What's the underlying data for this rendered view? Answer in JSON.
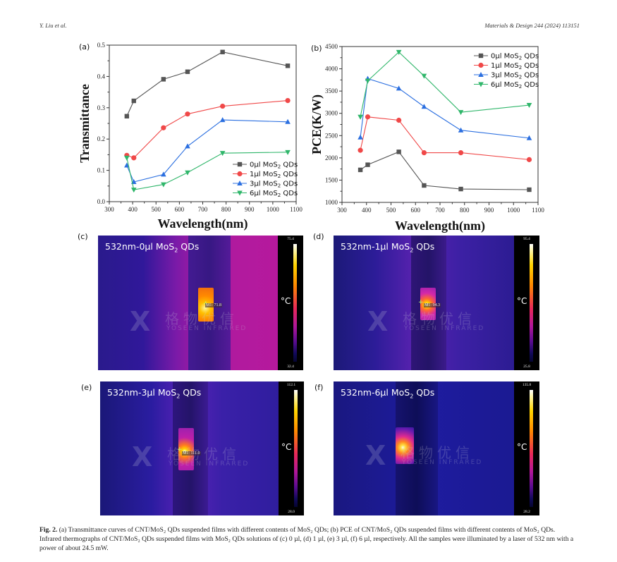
{
  "header": {
    "authors": "Y. Liu et al.",
    "journal": "Materials & Design 244 (2024) 113151"
  },
  "chart_data": [
    {
      "panel": "(a)",
      "type": "line",
      "title": "",
      "xlabel": "Wavelength(nm)",
      "ylabel": "Transmittance",
      "xlim": [
        300,
        1100
      ],
      "ylim": [
        0.0,
        0.5
      ],
      "xticks": [
        300,
        400,
        500,
        600,
        700,
        800,
        900,
        1000,
        1100
      ],
      "yticks": [
        "0.0",
        "0.1",
        "0.2",
        "0.3",
        "0.4",
        "0.5"
      ],
      "yticks_values": [
        0.0,
        0.1,
        0.2,
        0.3,
        0.4,
        0.5
      ],
      "legend_position": "bottom-right",
      "x": [
        375,
        405,
        532,
        635,
        785,
        1064
      ],
      "series": [
        {
          "name": "0µl MoS2 QDs",
          "color": "#555555",
          "marker": "square",
          "values": [
            0.273,
            0.322,
            0.391,
            0.415,
            0.478,
            0.434
          ]
        },
        {
          "name": "1µl MoS2 QDs",
          "color": "#f04848",
          "marker": "circle",
          "values": [
            0.148,
            0.14,
            0.236,
            0.28,
            0.305,
            0.323
          ]
        },
        {
          "name": "3µl MoS2 QDs",
          "color": "#2b6fe0",
          "marker": "triangle-up",
          "values": [
            0.116,
            0.063,
            0.087,
            0.177,
            0.261,
            0.255
          ]
        },
        {
          "name": "6µl MoS2 QDs",
          "color": "#2fb66a",
          "marker": "triangle-down",
          "values": [
            0.14,
            0.038,
            0.055,
            0.093,
            0.155,
            0.158
          ]
        }
      ]
    },
    {
      "panel": "(b)",
      "type": "line",
      "title": "",
      "xlabel": "Wavelength(nm)",
      "ylabel": "PCE(K/W)",
      "xlim": [
        300,
        1100
      ],
      "ylim": [
        1000,
        4500
      ],
      "xticks": [
        300,
        400,
        500,
        600,
        700,
        800,
        900,
        1000,
        1100
      ],
      "yticks": [
        "1000",
        "1500",
        "2000",
        "2500",
        "3000",
        "3500",
        "4000",
        "4500"
      ],
      "yticks_values": [
        1000,
        1500,
        2000,
        2500,
        3000,
        3500,
        4000,
        4500
      ],
      "legend_position": "top-right",
      "x": [
        375,
        405,
        532,
        635,
        785,
        1064
      ],
      "series": [
        {
          "name": "0µl MoS2 QDs",
          "color": "#555555",
          "marker": "square",
          "values": [
            1730,
            1845,
            2135,
            1380,
            1300,
            1285
          ]
        },
        {
          "name": "1µl MoS2 QDs",
          "color": "#f04848",
          "marker": "circle",
          "values": [
            2170,
            2920,
            2845,
            2115,
            2115,
            1960
          ]
        },
        {
          "name": "3µl MoS2 QDs",
          "color": "#2b6fe0",
          "marker": "triangle-up",
          "values": [
            2460,
            3780,
            3560,
            3150,
            2620,
            2445
          ]
        },
        {
          "name": "6µl MoS2 QDs",
          "color": "#2fb66a",
          "marker": "triangle-down",
          "values": [
            2920,
            3730,
            4375,
            3840,
            3025,
            3185
          ]
        }
      ]
    }
  ],
  "legend_labels": [
    {
      "prefix": "0µl MoS",
      "sub": "2",
      "suffix": " QDs"
    },
    {
      "prefix": "1µl MoS",
      "sub": "2",
      "suffix": " QDs"
    },
    {
      "prefix": "3µl MoS",
      "sub": "2",
      "suffix": " QDs"
    },
    {
      "prefix": "6µl MoS",
      "sub": "2",
      "suffix": " QDs"
    }
  ],
  "thermographs": [
    {
      "panel": "(c)",
      "label_prefix": "532nm-0µl MoS",
      "label_sub": "2",
      "label_suffix": " QDs",
      "scale_max": "75.4",
      "scale_min": "32.4",
      "unit": "°C",
      "readout": "M1: 71.8",
      "watermark_cn": "格物优信",
      "watermark_en": "YOSEEN INFRARED"
    },
    {
      "panel": "(d)",
      "label_prefix": "532nm-1µl MoS",
      "label_sub": "2",
      "label_suffix": " QDs",
      "scale_max": "95.4",
      "scale_min": "25.8",
      "unit": "°C",
      "readout": "M1: 94.3",
      "watermark_cn": "格物优信",
      "watermark_en": "YOSEEN INFRARED"
    },
    {
      "panel": "(e)",
      "label_prefix": "532nm-3µl MoS",
      "label_sub": "2",
      "label_suffix": " QDs",
      "scale_max": "112.1",
      "scale_min": "28.0",
      "unit": "°C",
      "readout": "M1: 111.0",
      "watermark_cn": "格物优信",
      "watermark_en": "YOSEEN INFRARED"
    },
    {
      "panel": "(f)",
      "label_prefix": "532nm-6µl MoS",
      "label_sub": "2",
      "label_suffix": " QDs",
      "scale_max": "135.8",
      "scale_min": "28.2",
      "unit": "°C",
      "readout": "",
      "watermark_cn": "格物优信",
      "watermark_en": "YOSEEN INFRARED"
    }
  ],
  "caption": {
    "label": "Fig. 2.",
    "text": "(a) Transmittance curves of CNT/MoS₂ QDs suspended films with different contents of MoS₂ QDs; (b) PCE of CNT/MoS₂ QDs suspended films with different contents of MoS₂ QDs. Infrared thermographs of CNT/MoS₂ QDs suspended films with MoS₂ QDs solutions of (c) 0 µl, (d) 1 µl, (e) 3 µl, (f) 6 µl, respectively. All the samples were illuminated by a laser of 532 nm with a power of about 24.5 mW."
  }
}
